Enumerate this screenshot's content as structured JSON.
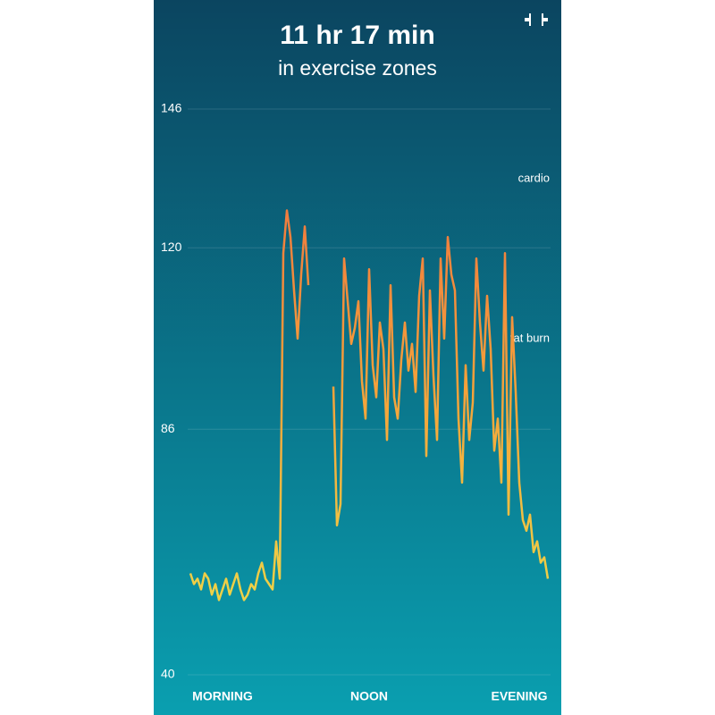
{
  "chart_data": {
    "type": "line",
    "title": "11 hr 17 min",
    "subtitle": "in exercise zones",
    "annotations": [
      "cardio",
      "fat burn"
    ],
    "values": [
      59,
      57,
      58,
      56,
      59,
      58,
      55,
      57,
      54,
      56,
      58,
      55,
      57,
      59,
      56,
      54,
      55,
      57,
      56,
      59,
      61,
      58,
      57,
      56,
      65,
      58,
      119,
      127,
      122,
      112,
      103,
      115,
      124,
      113,
      null,
      null,
      null,
      null,
      null,
      null,
      94,
      68,
      72,
      118,
      110,
      102,
      105,
      110,
      95,
      88,
      116,
      98,
      92,
      106,
      101,
      84,
      113,
      92,
      88,
      99,
      106,
      97,
      102,
      93,
      111,
      118,
      81,
      112,
      96,
      84,
      118,
      103,
      122,
      115,
      112,
      88,
      76,
      98,
      84,
      91,
      118,
      106,
      97,
      111,
      101,
      82,
      88,
      76,
      119,
      70,
      107,
      93,
      76,
      69,
      67,
      70,
      63,
      65,
      61,
      62,
      58
    ],
    "colors": [
      "#ece44c",
      "#f5a23a",
      "#ee6640"
    ],
    "xlim": [
      0,
      100
    ],
    "xticks": [
      {
        "value": 9,
        "label": "MORNING"
      },
      {
        "value": 50,
        "label": "NOON"
      },
      {
        "value": 92,
        "label": "EVENING"
      }
    ],
    "ylim": [
      40,
      146
    ],
    "yticks": [
      40,
      86,
      120,
      146
    ],
    "grid": true
  }
}
